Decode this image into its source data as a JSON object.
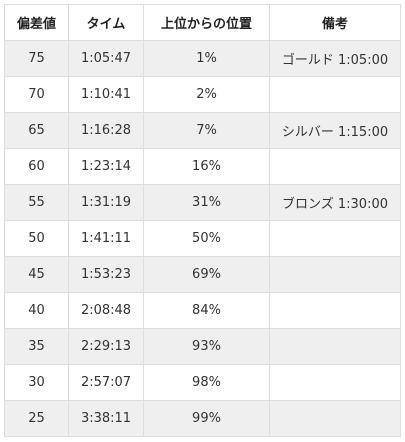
{
  "table": {
    "headers": [
      "偏差値",
      "タイム",
      "上位からの位置",
      "備考"
    ],
    "rows": [
      [
        "75",
        "1:05:47",
        "1%",
        "ゴールド 1:05:00"
      ],
      [
        "70",
        "1:10:41",
        "2%",
        ""
      ],
      [
        "65",
        "1:16:28",
        "7%",
        "シルバー 1:15:00"
      ],
      [
        "60",
        "1:23:14",
        "16%",
        ""
      ],
      [
        "55",
        "1:31:19",
        "31%",
        "ブロンズ 1:30:00"
      ],
      [
        "50",
        "1:41:11",
        "50%",
        ""
      ],
      [
        "45",
        "1:53:23",
        "69%",
        ""
      ],
      [
        "40",
        "2:08:48",
        "84%",
        ""
      ],
      [
        "35",
        "2:29:13",
        "93%",
        ""
      ],
      [
        "30",
        "2:57:07",
        "98%",
        ""
      ],
      [
        "25",
        "3:38:11",
        "99%",
        ""
      ]
    ]
  },
  "colors": {
    "stripe": "#efefef",
    "border": "#dddddd",
    "text": "#333333"
  }
}
